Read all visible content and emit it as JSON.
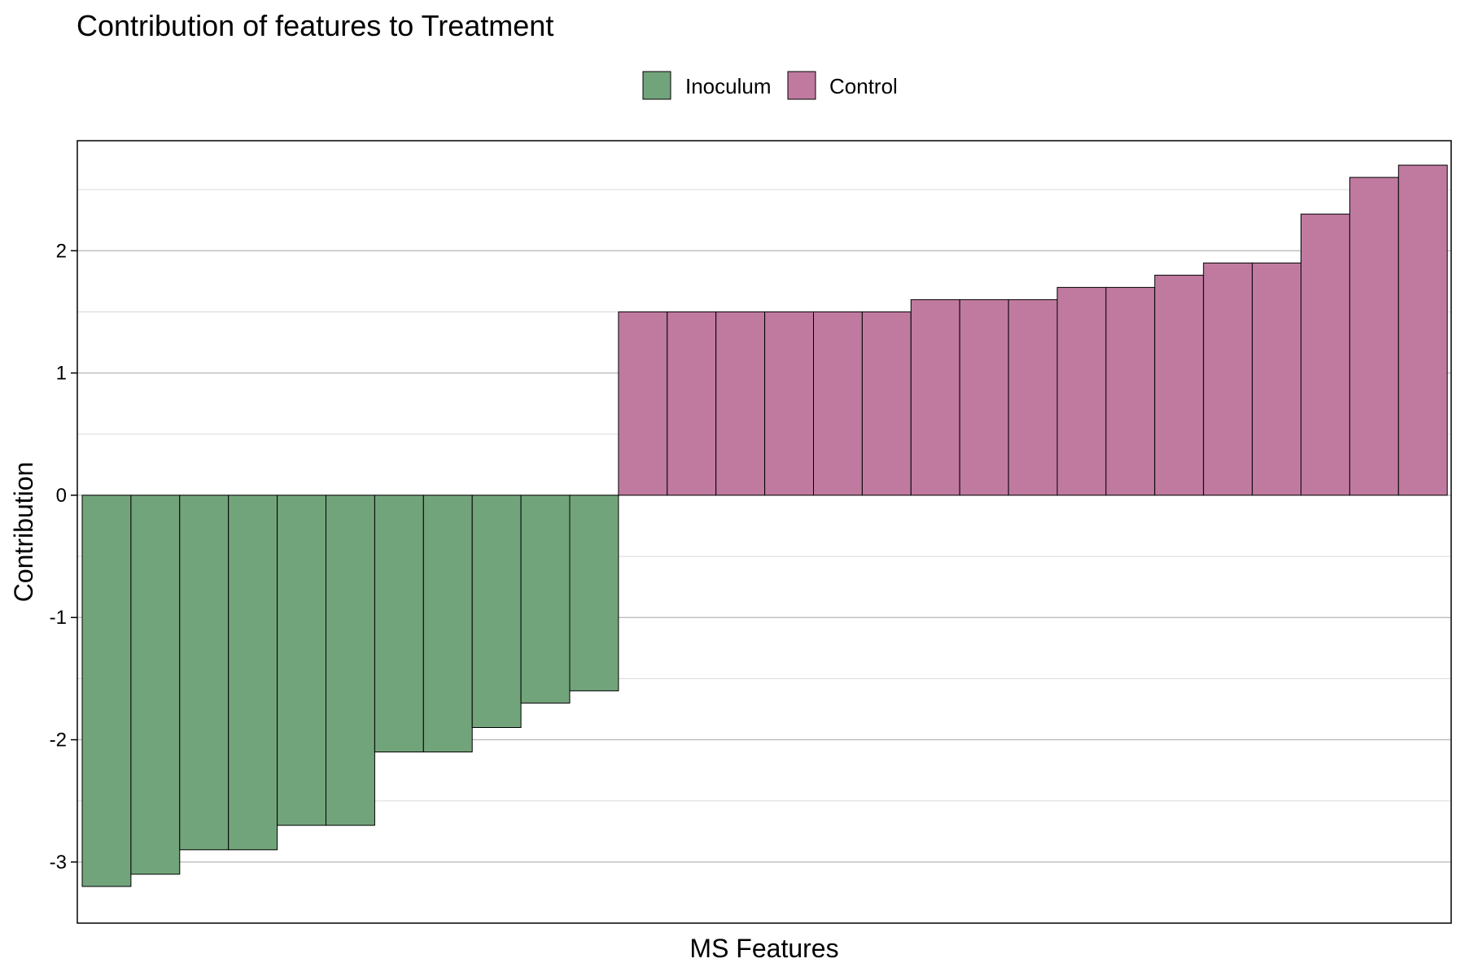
{
  "chart_data": {
    "type": "bar",
    "title": "Contribution of features to Treatment",
    "xlabel": "MS Features",
    "ylabel": "Contribution",
    "ylim": [
      -3.5,
      2.9
    ],
    "yticks": [
      -3,
      -2,
      -1,
      0,
      1,
      2
    ],
    "ytick_labels": [
      "-3",
      "-2",
      "-1",
      "0",
      "1",
      "2"
    ],
    "grid": true,
    "legend_placement": "top-center",
    "series": [
      {
        "name": "Inoculum",
        "color": "#72a47b",
        "values": [
          -3.2,
          -3.1,
          -2.9,
          -2.9,
          -2.7,
          -2.7,
          -2.1,
          -2.1,
          -1.9,
          -1.7,
          -1.6
        ]
      },
      {
        "name": "Control",
        "color": "#c07aa0",
        "values": [
          1.5,
          1.5,
          1.5,
          1.5,
          1.5,
          1.5,
          1.6,
          1.6,
          1.6,
          1.7,
          1.7,
          1.8,
          1.9,
          1.9,
          2.3,
          2.6,
          2.7
        ]
      }
    ]
  }
}
